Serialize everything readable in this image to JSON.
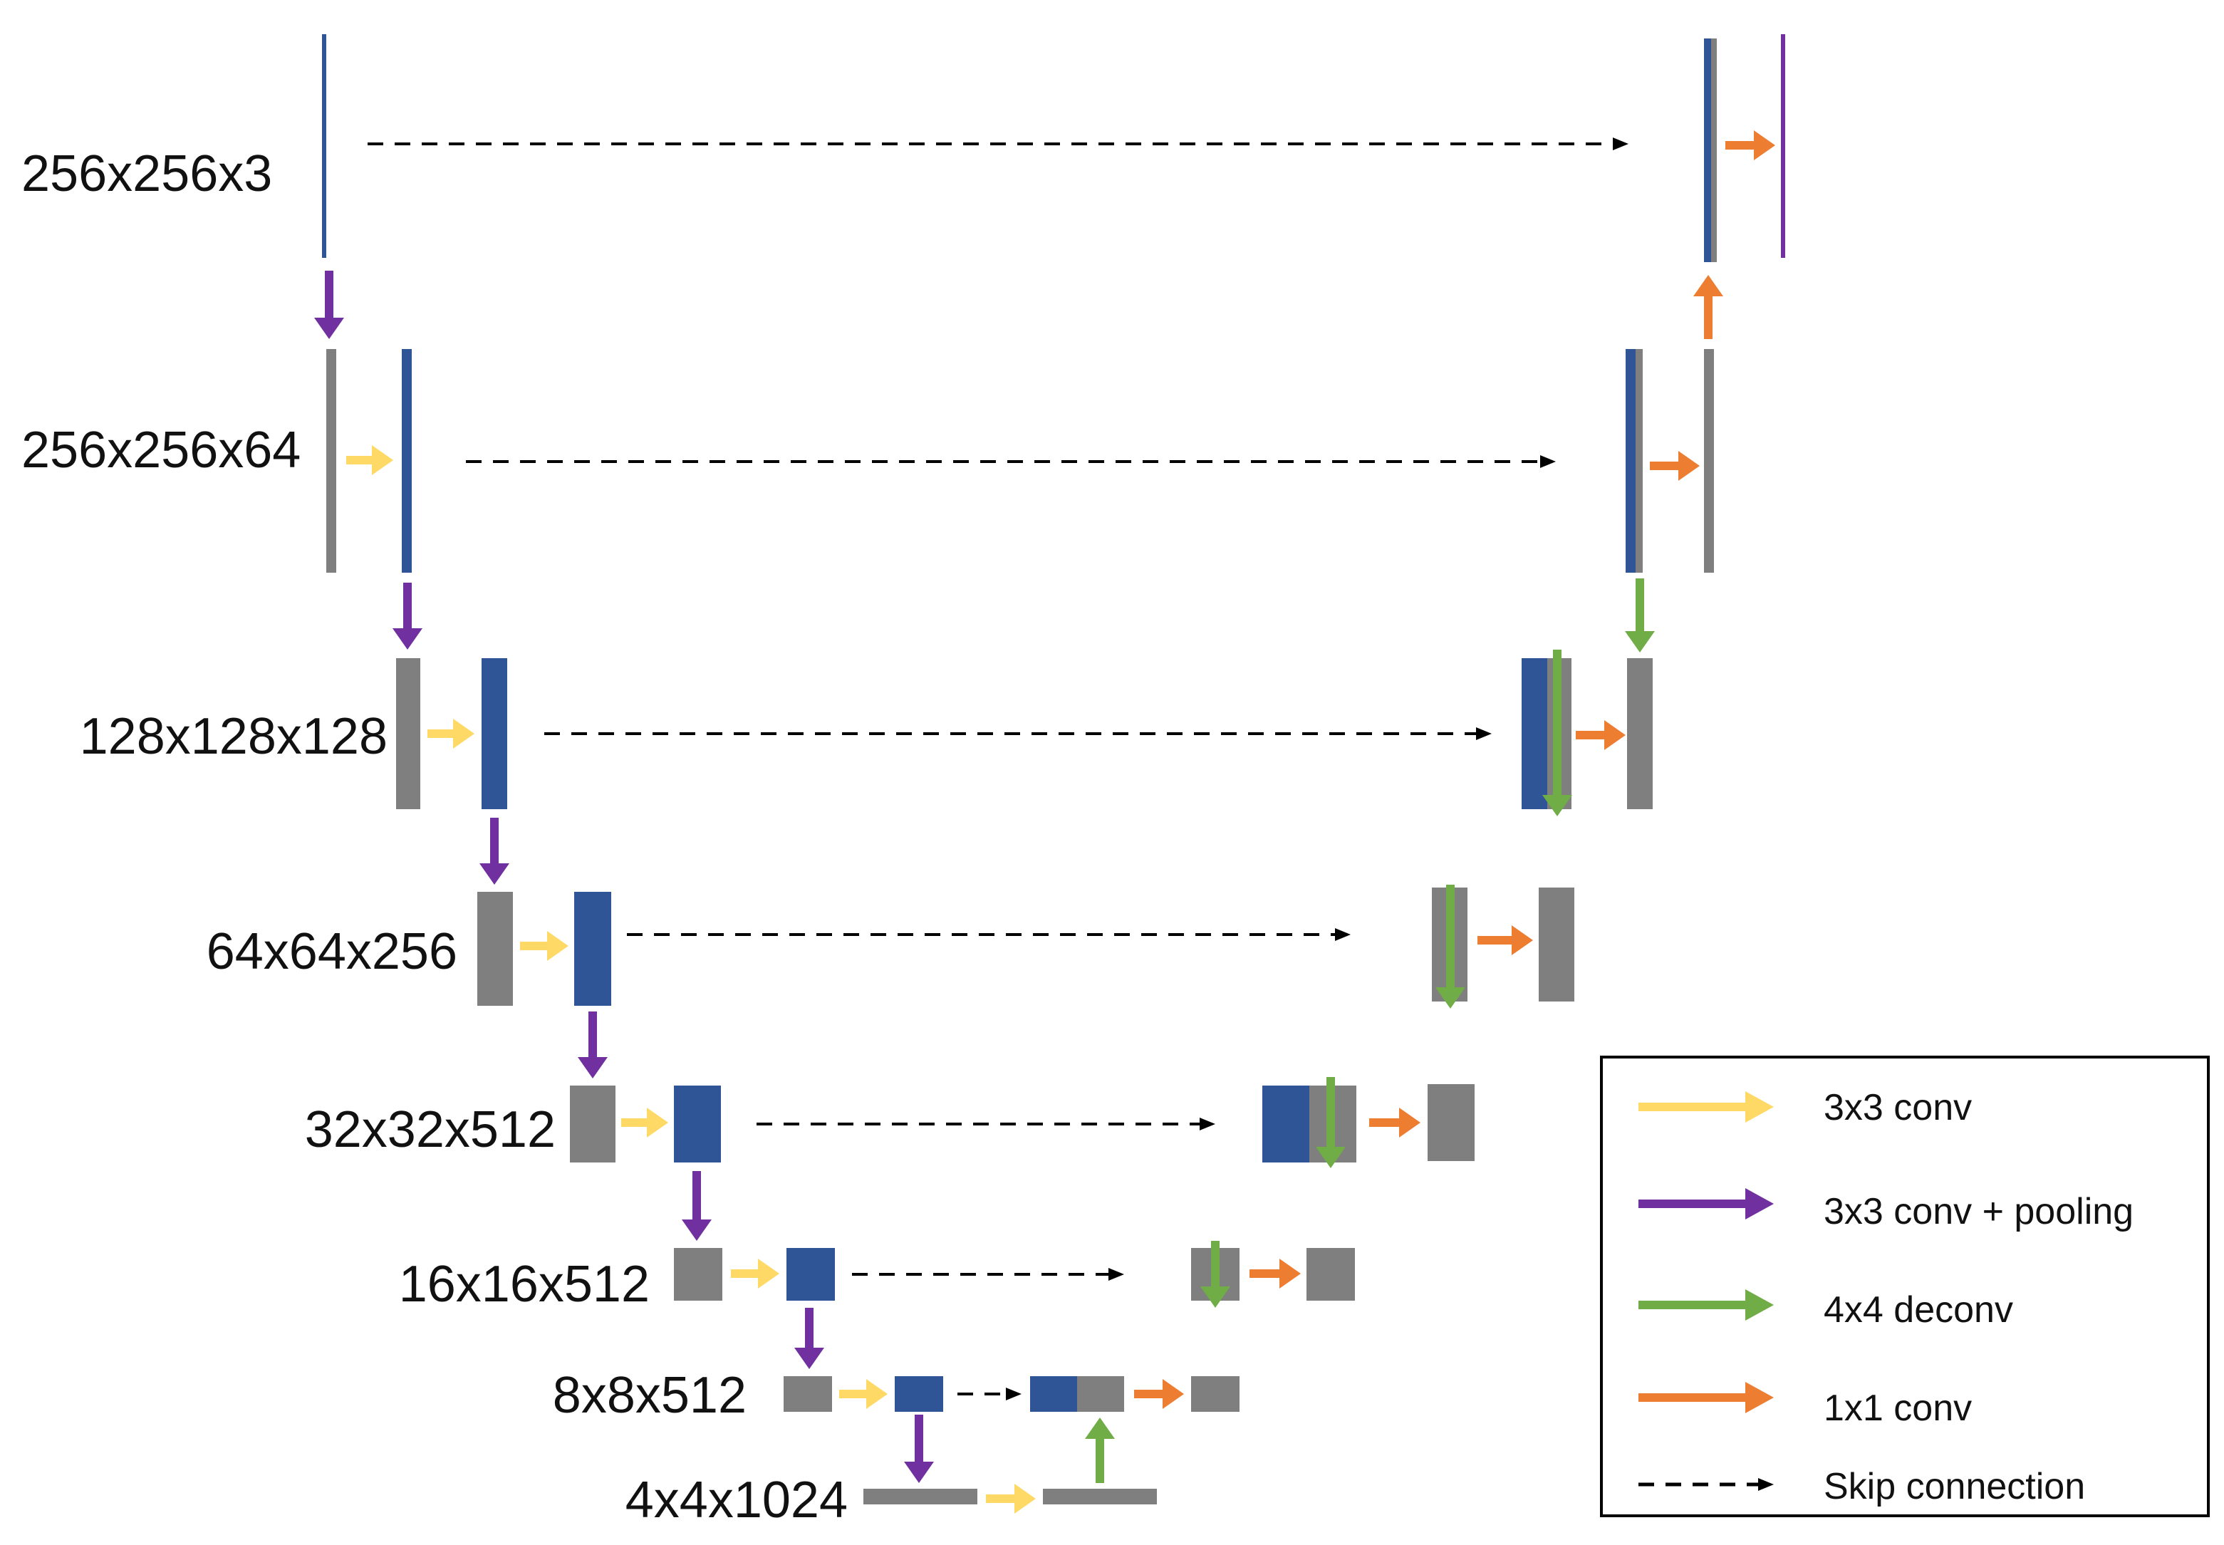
{
  "levels": [
    {
      "label": "256x256x3"
    },
    {
      "label": "256x256x64"
    },
    {
      "label": "128x128x128"
    },
    {
      "label": "64x64x256"
    },
    {
      "label": "32x32x512"
    },
    {
      "label": "16x16x512"
    },
    {
      "label": "8x8x512"
    },
    {
      "label": "4x4x1024"
    }
  ],
  "legend": {
    "items": [
      {
        "label": "3x3 conv",
        "symbol": "arrow",
        "color": "#ffd966"
      },
      {
        "label": "3x3 conv + pooling",
        "symbol": "arrow",
        "color": "#7030a0"
      },
      {
        "label": "4x4 deconv",
        "symbol": "arrow",
        "color": "#70ad47"
      },
      {
        "label": "1x1 conv",
        "symbol": "arrow",
        "color": "#ed7d31"
      },
      {
        "label": "Skip connection",
        "symbol": "dashed-arrow",
        "color": "#000000"
      }
    ]
  },
  "colors": {
    "gray_block": "#7f7f7f",
    "blue_block": "#2f5597",
    "output_line": "#7030a0",
    "conv": "#ffd966",
    "pool": "#7030a0",
    "deconv": "#70ad47",
    "conv1x1": "#ed7d31",
    "skip": "#000000"
  }
}
